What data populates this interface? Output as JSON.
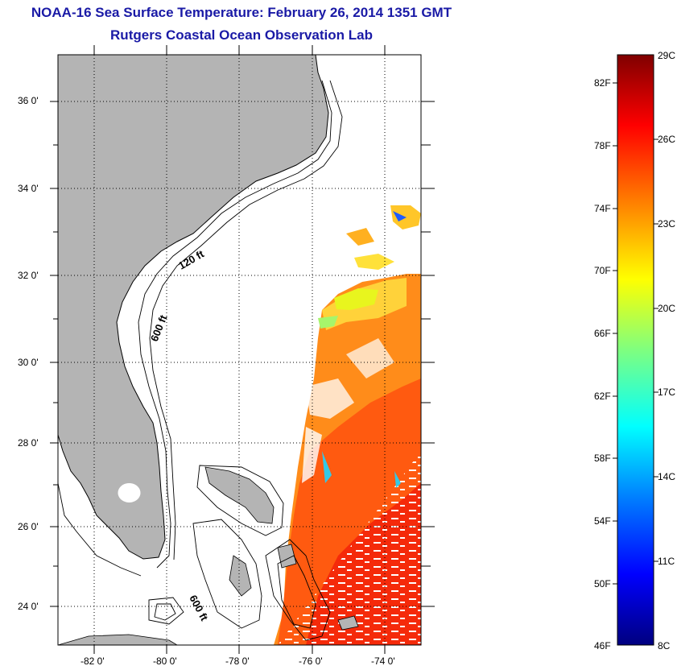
{
  "header": {
    "title": "NOAA-16 Sea Surface Temperature:  February 26, 2014 1351 GMT",
    "subtitle": "Rutgers Coastal Ocean Observation Lab"
  },
  "map": {
    "lat_ticks": [
      "36 0'",
      "34 0'",
      "32 0'",
      "30 0'",
      "28 0'",
      "26 0'",
      "24 0'"
    ],
    "lon_ticks": [
      "-82 0'",
      "-80 0'",
      "-78 0'",
      "-76 0'",
      "-74 0'"
    ],
    "lat_range": [
      23,
      37.2
    ],
    "lon_range": [
      -83,
      -73
    ],
    "contours": [
      "120 ft",
      "600 ft",
      "600 ft"
    ],
    "colors": {
      "land": "#b4b4b4",
      "ocean": "#ffffff",
      "grid": "#000000"
    }
  },
  "colorbar": {
    "celsius_labels": [
      "29C",
      "26C",
      "23C",
      "20C",
      "17C",
      "14C",
      "11C",
      "8C"
    ],
    "fahrenheit_labels": [
      "82F",
      "78F",
      "74F",
      "70F",
      "66F",
      "62F",
      "58F",
      "54F",
      "50F",
      "46F"
    ],
    "range_c": [
      8,
      29
    ],
    "colormap": [
      "#00007f",
      "#0000ff",
      "#007fff",
      "#00ffff",
      "#7fff7f",
      "#ffff00",
      "#ff7f00",
      "#ff0000",
      "#7f0000"
    ]
  }
}
